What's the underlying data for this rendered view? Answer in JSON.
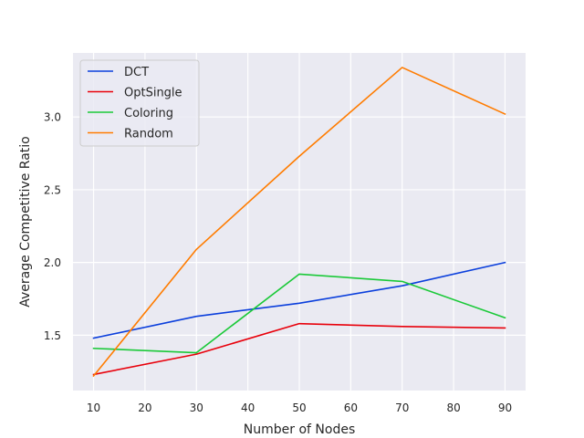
{
  "chart_data": {
    "type": "line",
    "xlabel": "Number of Nodes",
    "ylabel": "Average Competitive Ratio",
    "x": [
      10,
      30,
      50,
      70,
      90
    ],
    "xticks": [
      10,
      20,
      30,
      40,
      50,
      60,
      70,
      80,
      90
    ],
    "yticks": [
      1.5,
      2.0,
      2.5,
      3.0
    ],
    "ytick_labels": [
      "1.5",
      "2.0",
      "2.5",
      "3.0"
    ],
    "xlim": [
      6,
      94
    ],
    "ylim": [
      1.12,
      3.44
    ],
    "grid": true,
    "legend_position": "top-left",
    "series": [
      {
        "name": "DCT",
        "color": "#0b3fdc",
        "values": [
          1.48,
          1.63,
          1.72,
          1.84,
          2.0
        ]
      },
      {
        "name": "OptSingle",
        "color": "#e8000b",
        "values": [
          1.23,
          1.37,
          1.58,
          1.56,
          1.55
        ]
      },
      {
        "name": "Coloring",
        "color": "#1ac938",
        "values": [
          1.41,
          1.38,
          1.92,
          1.87,
          1.62
        ]
      },
      {
        "name": "Random",
        "color": "#ff7c00",
        "values": [
          1.22,
          2.09,
          2.73,
          3.34,
          3.02
        ]
      }
    ]
  }
}
